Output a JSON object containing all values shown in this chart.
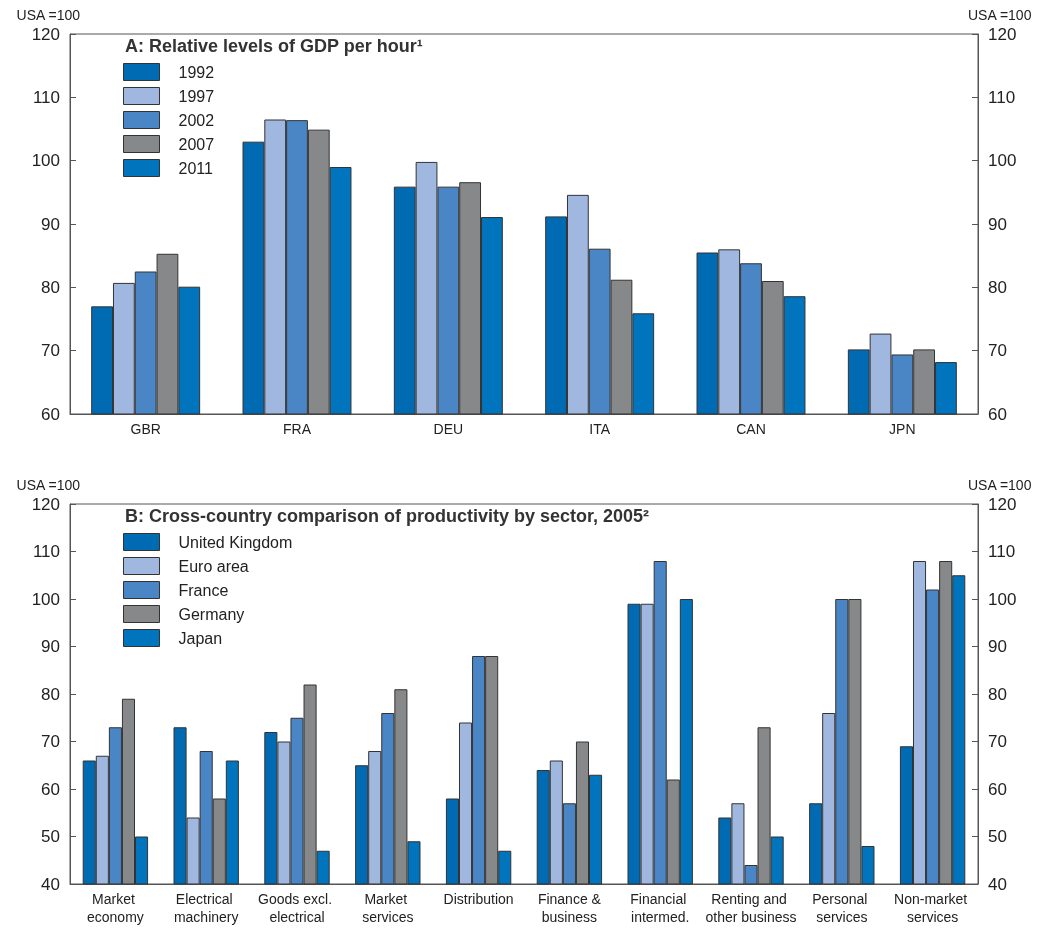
{
  "chart_data": [
    {
      "type": "bar",
      "title": "A: Relative levels of GDP per hour¹",
      "ylabel": "USA =100",
      "y2label": "USA =100",
      "categories": [
        "GBR",
        "FRA",
        "DEU",
        "ITA",
        "CAN",
        "JPN"
      ],
      "series": [
        {
          "name": "1992",
          "color": "#006bb3",
          "values": [
            77,
            103,
            95.9,
            91.2,
            85.5,
            70.2
          ]
        },
        {
          "name": "1997",
          "color": "#a0b8e0",
          "values": [
            80.7,
            106.5,
            99.8,
            94.6,
            86,
            72.7
          ]
        },
        {
          "name": "2002",
          "color": "#4a86c5",
          "values": [
            82.5,
            106.4,
            95.9,
            86.1,
            83.8,
            69.4
          ]
        },
        {
          "name": "2007",
          "color": "#87888a",
          "values": [
            85.3,
            104.9,
            96.6,
            81.2,
            81,
            70.2
          ]
        },
        {
          "name": "2011",
          "color": "#0074bc",
          "values": [
            80.1,
            99,
            91.1,
            75.9,
            78.6,
            68.2
          ]
        }
      ],
      "ylim": [
        60,
        120
      ],
      "yticks": [
        60,
        70,
        80,
        90,
        100,
        110,
        120
      ],
      "y2lim": [
        60,
        120
      ],
      "y2ticks": [
        60,
        70,
        80,
        90,
        100,
        110,
        120
      ],
      "grid": false,
      "legend": "top left"
    },
    {
      "type": "bar",
      "title": "B: Cross-country comparison of productivity by sector, 2005²",
      "ylabel": "USA =100",
      "y2label": "USA =100",
      "categories": [
        "Market economy",
        "Electrical machinery",
        "Goods excl. electrical",
        "Market services",
        "Distribution",
        "Finance &business",
        "Financial intermed.",
        "Renting and other business",
        "Personal services",
        "Non-market services"
      ],
      "series": [
        {
          "name": "United Kingdom",
          "color": "#006bb3",
          "values": [
            66,
            73,
            72,
            65,
            58,
            64,
            99,
            54,
            57,
            69
          ]
        },
        {
          "name": "Euro area",
          "color": "#a0b8e0",
          "values": [
            67,
            54,
            70,
            68,
            74,
            66,
            99,
            57,
            76,
            108
          ]
        },
        {
          "name": "France",
          "color": "#4a86c5",
          "values": [
            73,
            68,
            75,
            76,
            88,
            57,
            108,
            44,
            100,
            102
          ]
        },
        {
          "name": "Germany",
          "color": "#87888a",
          "values": [
            79,
            58,
            82,
            81,
            88,
            70,
            62,
            73,
            100,
            108
          ]
        },
        {
          "name": "Japan",
          "color": "#0074bc",
          "values": [
            50,
            66,
            47,
            49,
            47,
            63,
            100,
            50,
            48,
            105
          ]
        }
      ],
      "ylim": [
        40,
        120
      ],
      "yticks": [
        40,
        50,
        60,
        70,
        80,
        90,
        100,
        110,
        120
      ],
      "y2lim": [
        40,
        120
      ],
      "y2ticks": [
        40,
        50,
        60,
        70,
        80,
        90,
        100,
        110,
        120
      ],
      "grid": false,
      "legend": "top left"
    }
  ]
}
